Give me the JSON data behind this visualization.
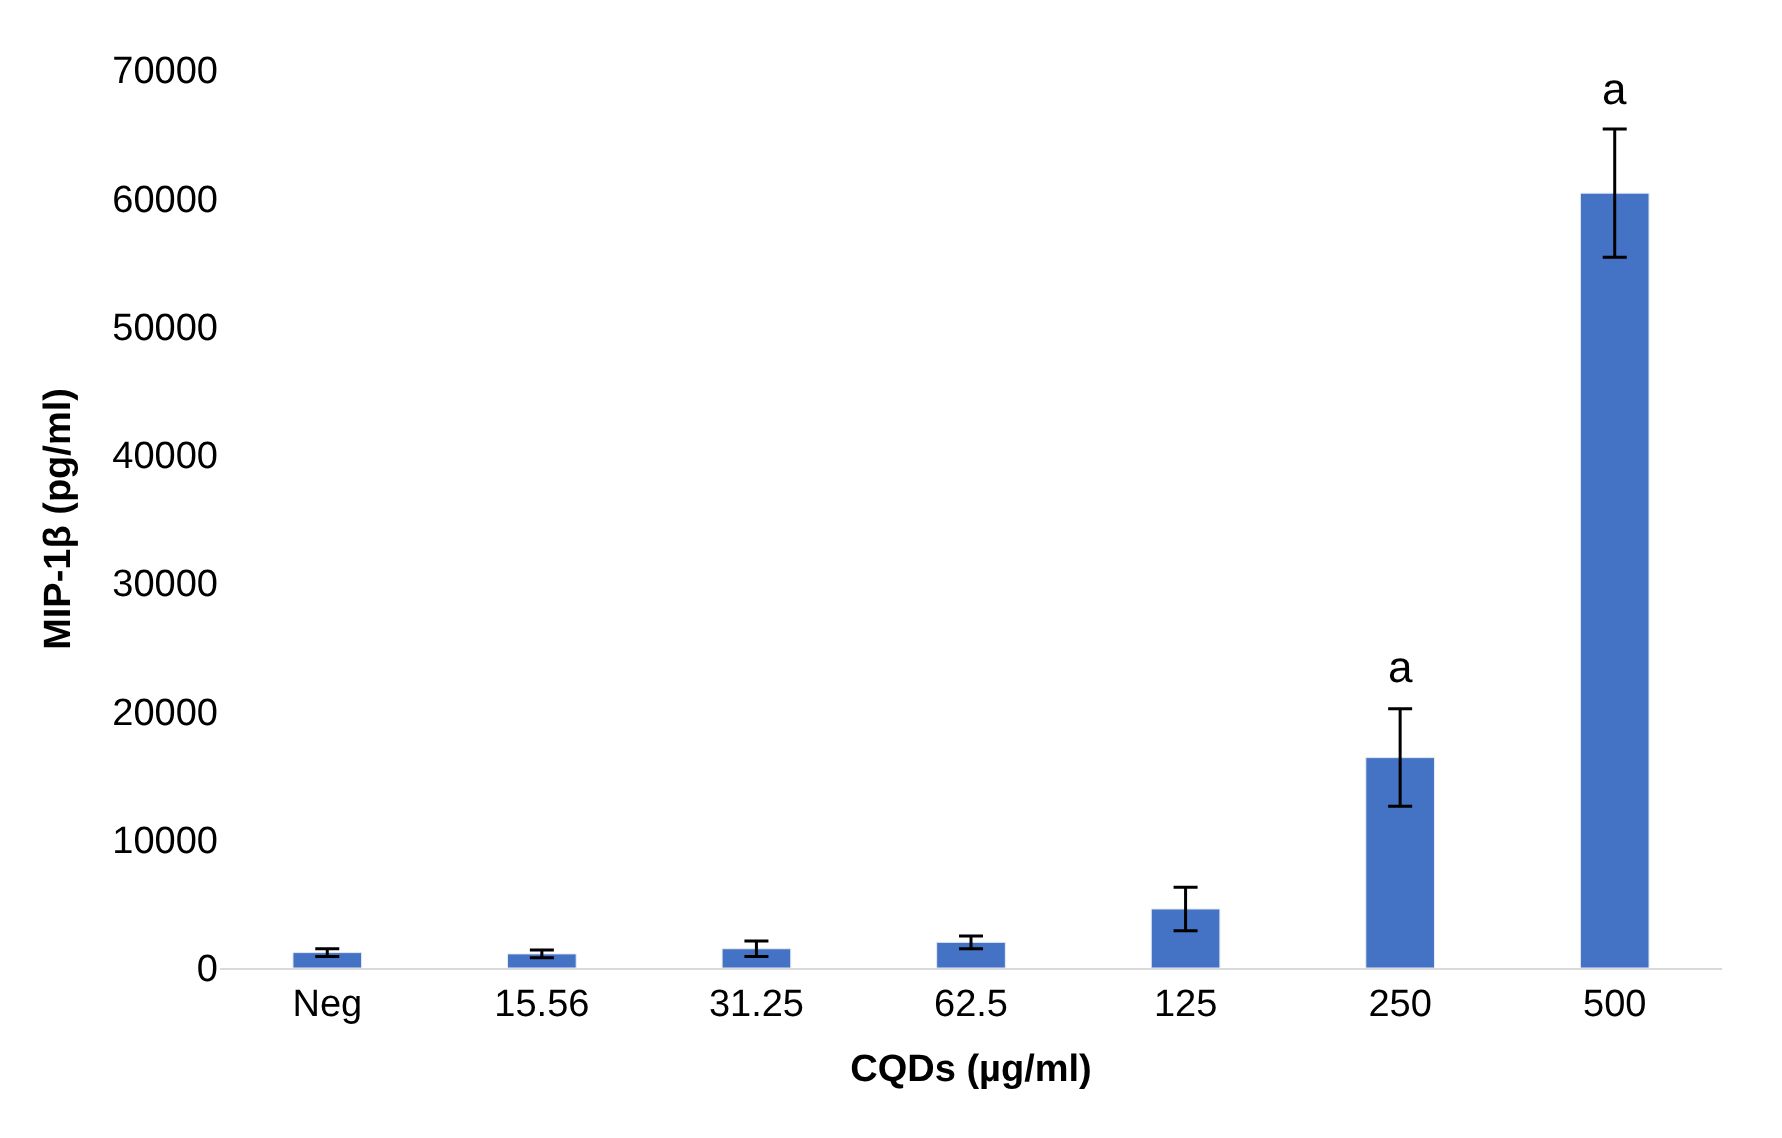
{
  "chart_data": {
    "type": "bar",
    "xlabel": "CQDs (µg/ml)",
    "ylabel": "MIP-1β (pg/ml)",
    "categories": [
      "Neg",
      "15.56",
      "31.25",
      "62.5",
      "125",
      "250",
      "500"
    ],
    "values": [
      1200,
      1100,
      1500,
      2000,
      4600,
      16400,
      60400
    ],
    "errors": [
      300,
      300,
      600,
      500,
      1700,
      3800,
      5000
    ],
    "color": "#4472c4",
    "ylim": [
      0,
      70000
    ],
    "yticks": [
      0,
      10000,
      20000,
      30000,
      40000,
      50000,
      60000,
      70000
    ],
    "grid": false,
    "annotations": [
      {
        "text": "a",
        "x": "250",
        "y": 20200
      },
      {
        "text": "a",
        "x": "500",
        "y": 65400
      }
    ]
  }
}
